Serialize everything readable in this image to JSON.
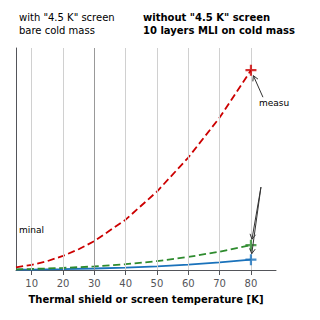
{
  "chart_data": {
    "type": "line",
    "title": "with \"4.5 K\" screen\nbare cold mass",
    "subtitle": "without \"4.5 K\" screen\n10 layers MLI on cold mass",
    "xlabel": "Thermal shield or screen temperature [K]",
    "xlim": [
      5,
      88
    ],
    "xticks": [
      10,
      20,
      30,
      40,
      50,
      60,
      70,
      80
    ],
    "ylim": [
      0,
      15
    ],
    "yticks": [],
    "tick_labels": "x",
    "grid": true,
    "vline": 30,
    "series": [
      {
        "type": "line",
        "color": "#1a72bb",
        "line_style": "solid",
        "x": [
          5,
          10,
          20,
          30,
          40,
          50,
          60,
          70,
          80
        ],
        "values": [
          0.02,
          0.03,
          0.06,
          0.1,
          0.16,
          0.25,
          0.37,
          0.52,
          0.7
        ]
      },
      {
        "type": "scatter",
        "color": "#1a72bb",
        "marker": "plus",
        "x": [
          80
        ],
        "values": [
          0.7
        ]
      },
      {
        "type": "line",
        "color": "#2e8b2e",
        "line_style": "dashed",
        "x": [
          5,
          10,
          20,
          30,
          40,
          50,
          60,
          70,
          80
        ],
        "values": [
          0.04,
          0.07,
          0.14,
          0.24,
          0.39,
          0.6,
          0.88,
          1.24,
          1.68
        ]
      },
      {
        "type": "scatter",
        "color": "#2e8b2e",
        "marker": "plus",
        "x": [
          80
        ],
        "values": [
          1.68
        ]
      },
      {
        "type": "line",
        "color": "#cc0000",
        "line_style": "dashed",
        "x": [
          5,
          10,
          15,
          20,
          25,
          30,
          40,
          50,
          60,
          70,
          80
        ],
        "values": [
          0.18,
          0.35,
          0.6,
          0.95,
          1.4,
          1.95,
          3.4,
          5.3,
          7.6,
          10.3,
          13.5
        ]
      },
      {
        "type": "scatter",
        "color": "#cc0000",
        "marker": "plus",
        "x": [
          80
        ],
        "values": [
          13.5
        ]
      }
    ],
    "annotations": [
      {
        "text": "measu",
        "x": 80,
        "y": 13.5
      },
      {
        "text": "minal"
      }
    ],
    "arrows": [
      {
        "x": 80,
        "y": 1.68
      },
      {
        "x": 80,
        "y": 0.7
      }
    ]
  }
}
